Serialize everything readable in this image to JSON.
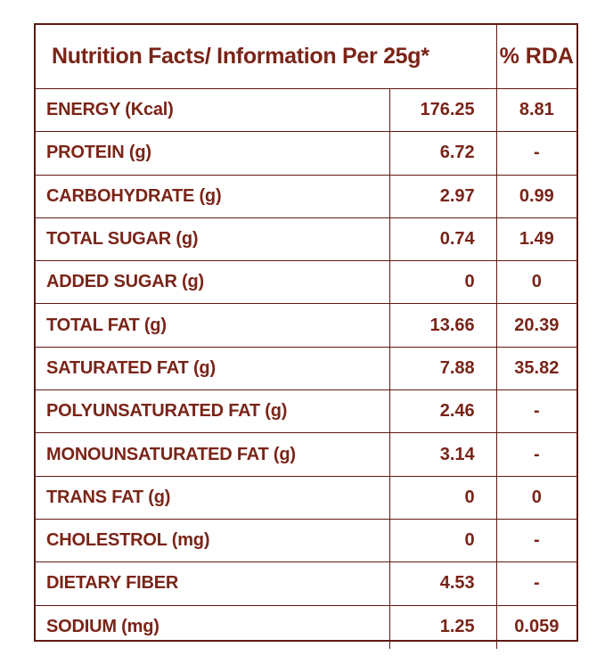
{
  "header": {
    "title": "Nutrition Facts/ Information Per 25g*",
    "rda": "% RDA"
  },
  "rows": [
    {
      "nutrient": "ENERGY (Kcal)",
      "value": "176.25",
      "rda": "8.81"
    },
    {
      "nutrient": "PROTEIN (g)",
      "value": "6.72",
      "rda": "-"
    },
    {
      "nutrient": "CARBOHYDRATE (g)",
      "value": "2.97",
      "rda": "0.99"
    },
    {
      "nutrient": "TOTAL SUGAR (g)",
      "value": "0.74",
      "rda": "1.49"
    },
    {
      "nutrient": "ADDED SUGAR (g)",
      "value": "0",
      "rda": "0"
    },
    {
      "nutrient": "TOTAL FAT (g)",
      "value": "13.66",
      "rda": "20.39"
    },
    {
      "nutrient": "SATURATED FAT (g)",
      "value": "7.88",
      "rda": "35.82"
    },
    {
      "nutrient": "POLYUNSATURATED FAT (g)",
      "value": "2.46",
      "rda": "-"
    },
    {
      "nutrient": "MONOUNSATURATED FAT (g)",
      "value": "3.14",
      "rda": "-"
    },
    {
      "nutrient": "TRANS FAT (g)",
      "value": "0",
      "rda": "0"
    },
    {
      "nutrient": "CHOLESTROL (mg)",
      "value": "0",
      "rda": "-"
    },
    {
      "nutrient": "DIETARY FIBER",
      "value": "4.53",
      "rda": "-"
    },
    {
      "nutrient": "SODIUM (mg)",
      "value": "1.25",
      "rda": "0.059"
    }
  ]
}
